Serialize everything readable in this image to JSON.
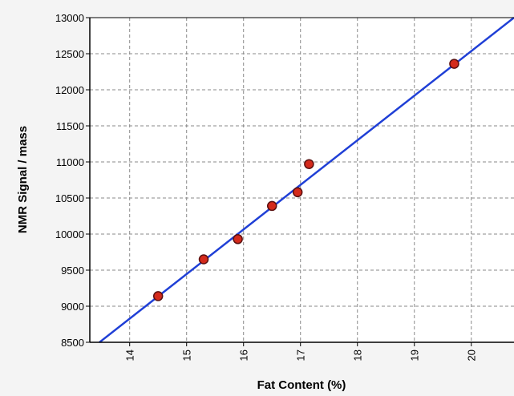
{
  "chart_data": {
    "type": "scatter",
    "title": "",
    "xlabel": "Fat Content (%)",
    "ylabel": "NMR Signal / mass",
    "xlim": [
      13.3,
      20.75
    ],
    "ylim": [
      8500,
      13000
    ],
    "xticks": [
      14,
      15,
      16,
      17,
      18,
      19,
      20
    ],
    "yticks": [
      8500,
      9000,
      9500,
      10000,
      10500,
      11000,
      11500,
      12000,
      12500,
      13000
    ],
    "grid": true,
    "points": {
      "x": [
        14.5,
        15.3,
        15.9,
        16.5,
        16.95,
        17.15,
        19.7
      ],
      "y": [
        9140,
        9650,
        9930,
        10390,
        10580,
        10970,
        12360
      ]
    },
    "fit_line": {
      "x": [
        13.47,
        20.75
      ],
      "y": [
        8500,
        13000
      ]
    },
    "colors": {
      "point_fill": "#d42a1c",
      "point_stroke": "#5a1010",
      "fit_line": "#1f3fd6",
      "grid": "#8a8a8a",
      "plot_background": "#ffffff",
      "page_background": "#f4f4f4"
    }
  }
}
